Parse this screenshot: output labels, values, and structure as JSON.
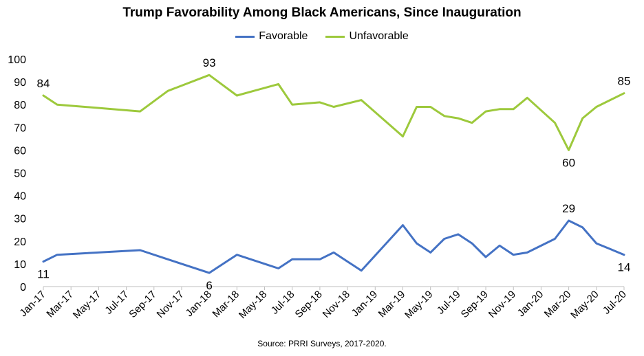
{
  "chart_data": {
    "type": "line",
    "title": "Trump Favorability Among Black Americans, Since Inauguration",
    "source": "Source: PRRI Surveys, 2017-2020.",
    "legend_position": "top-center",
    "grid": false,
    "ylim": [
      0,
      100
    ],
    "yticks": [
      "0",
      "10",
      "20",
      "30",
      "40",
      "50",
      "60",
      "70",
      "80",
      "90",
      "100"
    ],
    "x_range": [
      "2017-01",
      "2020-07"
    ],
    "xtick_labels": [
      "Jan-17",
      "Mar-17",
      "May-17",
      "Jul-17",
      "Sep-17",
      "Nov-17",
      "Jan-18",
      "Mar-18",
      "May-18",
      "Jul-18",
      "Sep-18",
      "Nov-18",
      "Jan-19",
      "Mar-19",
      "May-19",
      "Jul-19",
      "Sep-19",
      "Nov-19",
      "Jan-20",
      "Mar-20",
      "May-20",
      "Jul-20"
    ],
    "x": [
      "2017-01",
      "2017-02",
      "2017-08",
      "2017-10",
      "2018-01",
      "2018-03",
      "2018-06",
      "2018-07",
      "2018-09",
      "2018-10",
      "2018-12",
      "2019-03",
      "2019-04",
      "2019-05",
      "2019-06",
      "2019-07",
      "2019-08",
      "2019-09",
      "2019-10",
      "2019-11",
      "2019-12",
      "2020-02",
      "2020-03",
      "2020-04",
      "2020-05",
      "2020-07"
    ],
    "series": [
      {
        "name": "Favorable",
        "color": "#4472C4",
        "values": [
          11,
          14,
          16,
          12,
          6,
          14,
          8,
          12,
          12,
          15,
          7,
          27,
          19,
          15,
          21,
          23,
          19,
          13,
          18,
          14,
          15,
          21,
          29,
          26,
          19,
          14
        ],
        "data_labels": [
          [
            "2017-01",
            "11"
          ],
          [
            "2018-01",
            "6"
          ],
          [
            "2020-03",
            "29"
          ],
          [
            "2020-07",
            "14"
          ]
        ]
      },
      {
        "name": "Unfavorable",
        "color": "#9DC93C",
        "values": [
          84,
          80,
          77,
          86,
          93,
          84,
          89,
          80,
          81,
          79,
          82,
          66,
          79,
          79,
          75,
          74,
          72,
          77,
          78,
          78,
          83,
          72,
          60,
          74,
          79,
          85
        ],
        "data_labels": [
          [
            "2017-01",
            "84"
          ],
          [
            "2018-01",
            "93"
          ],
          [
            "2020-03",
            "60"
          ],
          [
            "2020-07",
            "85"
          ]
        ]
      }
    ]
  }
}
